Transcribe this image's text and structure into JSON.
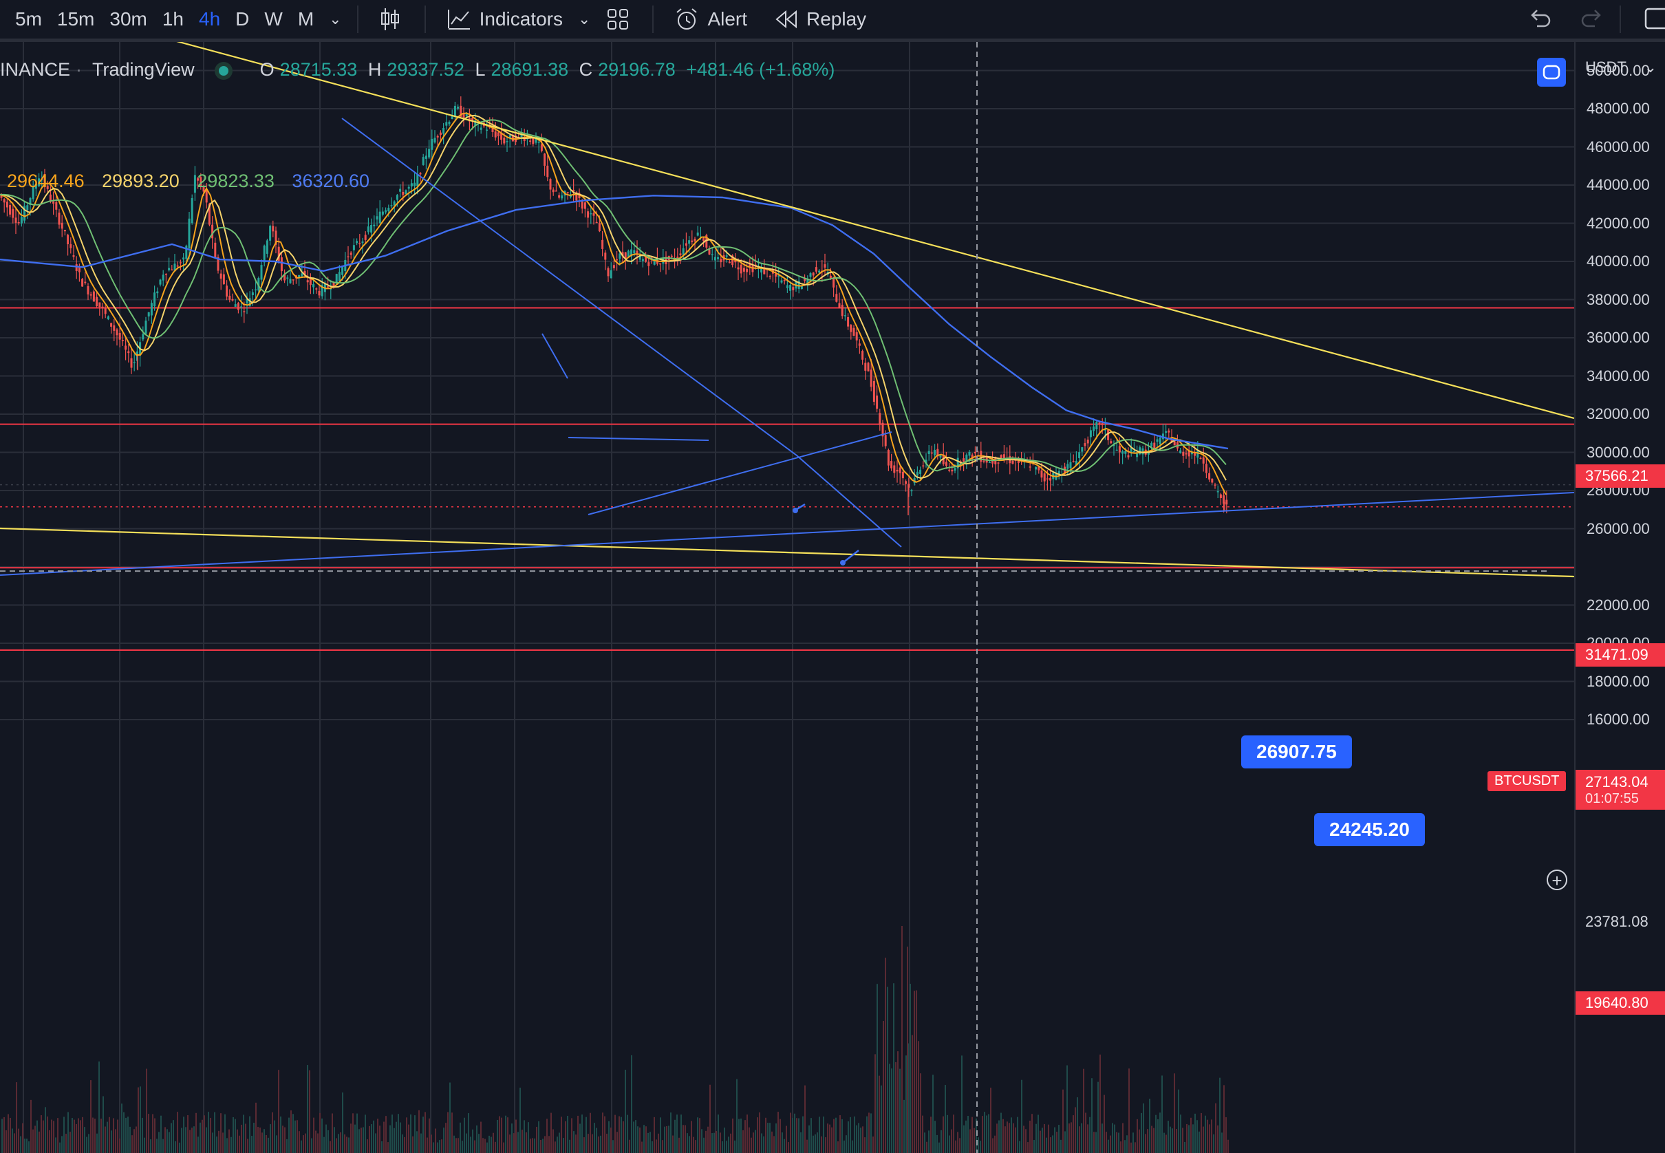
{
  "toolbar": {
    "timeframes": [
      "5m",
      "15m",
      "30m",
      "1h",
      "4h",
      "D",
      "W",
      "M"
    ],
    "active_timeframe": "4h",
    "indicators_label": "Indicators",
    "alert_label": "Alert",
    "replay_label": "Replay"
  },
  "legend": {
    "exchange": "INANCE",
    "source": "TradingView",
    "open_label": "O",
    "open": "28715.33",
    "high_label": "H",
    "high": "29337.52",
    "low_label": "L",
    "low": "28691.38",
    "close_label": "C",
    "close": "29196.78",
    "change": "+481.46 (+1.68%)"
  },
  "moving_averages": [
    {
      "value": "29644.46",
      "color": "#f7a41d"
    },
    {
      "value": "29893.20",
      "color": "#f5d36b"
    },
    {
      "value": "29823.33",
      "color": "#6fbf73"
    },
    {
      "value": "36320.60",
      "color": "#3f6ef0"
    }
  ],
  "price_axis": {
    "currency": "USDT",
    "ticks": [
      "50000.00",
      "48000.00",
      "46000.00",
      "44000.00",
      "42000.00",
      "40000.00",
      "38000.00",
      "36000.00",
      "34000.00",
      "32000.00",
      "30000.00",
      "28000.00",
      "26000.00",
      "22000.00",
      "20000.00",
      "18000.00",
      "16000.00"
    ],
    "badges": [
      {
        "value": "37566.21",
        "price": 37566.21
      },
      {
        "value": "31471.09",
        "price": 31471.09
      },
      {
        "value": "27143.04",
        "price": 27143.04,
        "sub": "01:07:55"
      },
      {
        "value": "19640.80",
        "price": 19640.8
      }
    ],
    "crosshair_price": "23781.08"
  },
  "symbol_tag": "BTCUSDT",
  "callouts": [
    {
      "label": "26907.75",
      "price": 26907.75
    },
    {
      "label": "24245.20",
      "price": 24245.2
    }
  ],
  "colors": {
    "background": "#131722",
    "bull": "#26a69a",
    "bear": "#ef5350",
    "trend_yellow": "#f5e05a",
    "trend_blue": "#3f6ef0",
    "support_red": "#f23645"
  }
}
